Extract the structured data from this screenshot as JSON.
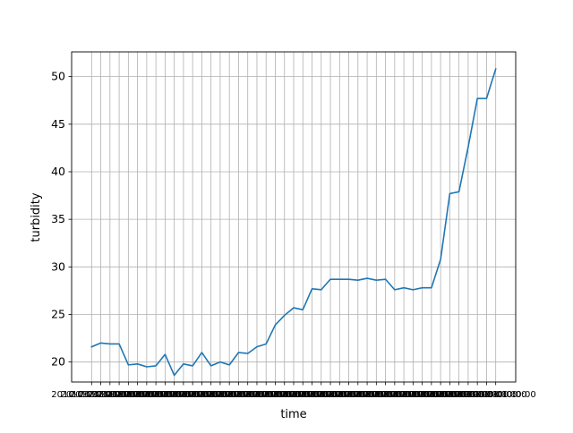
{
  "chart_data": {
    "type": "line",
    "title": "",
    "xlabel": "time",
    "ylabel": "turbidity",
    "grid": true,
    "ylim": [
      17.9,
      52.6
    ],
    "yticks": [
      20,
      25,
      30,
      35,
      40,
      45,
      50
    ],
    "x_tick_label_text": "2010-03-01 00:00",
    "x_tick_labels_legible": false,
    "series": [
      {
        "color": "#1f77b4",
        "values": [
          21.6,
          22.0,
          21.9,
          21.9,
          19.7,
          19.8,
          19.5,
          19.6,
          20.8,
          18.6,
          19.8,
          19.6,
          21.0,
          19.6,
          20.0,
          19.7,
          21.0,
          20.9,
          21.6,
          21.9,
          23.9,
          24.9,
          25.7,
          25.5,
          27.7,
          27.6,
          28.7,
          28.7,
          28.7,
          28.6,
          28.8,
          28.6,
          28.7,
          27.6,
          27.8,
          27.6,
          27.8,
          27.8,
          30.8,
          37.7,
          37.9,
          42.6,
          47.7,
          47.7,
          50.8
        ]
      }
    ]
  }
}
